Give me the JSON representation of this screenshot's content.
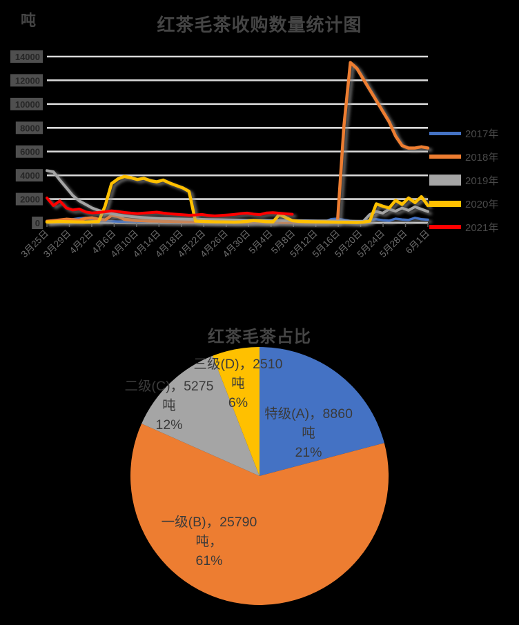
{
  "colors": {
    "background": "#000000",
    "title_text": "#454545",
    "axis_text": "#6b6b6b",
    "gridline": "#D9D9D9",
    "series_blue": "#4472C4",
    "series_orange": "#ED7D31",
    "series_gray": "#A5A5A5",
    "series_yellow": "#FFC000",
    "series_red": "#FF0000"
  },
  "chart_data": [
    {
      "type": "line",
      "title": "红茶毛茶收购数量统计图",
      "unit": "吨",
      "grid": true,
      "legend_position": "right",
      "ylim": [
        0,
        14000
      ],
      "y_ticks": [
        0,
        2000,
        4000,
        6000,
        8000,
        10000,
        12000,
        14000
      ],
      "x_tick_labels": [
        "3月25日",
        "3月29日",
        "4月2日",
        "4月6日",
        "4月10日",
        "4月14日",
        "4月18日",
        "4月22日",
        "4月26日",
        "4月30日",
        "5月4日",
        "5月8日",
        "5月12日",
        "5月16日",
        "5月20日",
        "5月24日",
        "5月28日",
        "6月1日"
      ],
      "series": [
        {
          "name": "2017年",
          "color": "#4472C4",
          "values": [
            90,
            130,
            160,
            110,
            300,
            380,
            420,
            300,
            200,
            150,
            130,
            110,
            100,
            95,
            90,
            110,
            130,
            120,
            100,
            95,
            90,
            100,
            110,
            120,
            100,
            90,
            85,
            95,
            105,
            115,
            100,
            90,
            85,
            80,
            90,
            100,
            110,
            90,
            80,
            70,
            80,
            90,
            85,
            80,
            300,
            350,
            250,
            150,
            90,
            80,
            250,
            300,
            220,
            180,
            350,
            280,
            240,
            420,
            300,
            260
          ]
        },
        {
          "name": "2018年",
          "color": "#ED7D31",
          "values": [
            130,
            180,
            240,
            300,
            260,
            220,
            380,
            420,
            300,
            240,
            620,
            540,
            300,
            250,
            200,
            180,
            160,
            150,
            140,
            130,
            120,
            110,
            100,
            95,
            90,
            85,
            80,
            75,
            70,
            65,
            60,
            55,
            50,
            50,
            50,
            50,
            50,
            45,
            40,
            40,
            40,
            40,
            45,
            50,
            55,
            60,
            8200,
            13500,
            13000,
            12100,
            11200,
            10300,
            9400,
            8500,
            7300,
            6500,
            6300,
            6300,
            6400,
            6300
          ]
        },
        {
          "name": "2019年",
          "color": "#A5A5A5",
          "values": [
            4400,
            4300,
            3600,
            2950,
            2300,
            1850,
            1550,
            1250,
            1050,
            900,
            780,
            680,
            600,
            530,
            480,
            440,
            410,
            390,
            370,
            350,
            330,
            320,
            310,
            300,
            290,
            280,
            270,
            260,
            250,
            240,
            230,
            220,
            215,
            210,
            205,
            200,
            195,
            190,
            185,
            180,
            175,
            170,
            165,
            160,
            155,
            150,
            145,
            140,
            135,
            130,
            700,
            950,
            820,
            1150,
            980,
            1250,
            1050,
            1350,
            1150,
            950
          ]
        },
        {
          "name": "2020年",
          "color": "#FFC000",
          "values": [
            70,
            90,
            110,
            95,
            85,
            75,
            65,
            85,
            105,
            1400,
            3300,
            3700,
            3900,
            3800,
            3650,
            3750,
            3550,
            3450,
            3600,
            3350,
            3150,
            2950,
            2650,
            150,
            120,
            100,
            90,
            80,
            70,
            60,
            80,
            120,
            200,
            150,
            100,
            90,
            700,
            450,
            180,
            120,
            100,
            90,
            80,
            70,
            60,
            50,
            40,
            35,
            30,
            60,
            150,
            1600,
            1400,
            1250,
            1900,
            1550,
            2100,
            1700,
            2200,
            1450
          ]
        },
        {
          "name": "2021年",
          "color": "#FF0000",
          "values": [
            2100,
            1450,
            1850,
            1250,
            1080,
            1160,
            920,
            830,
            870,
            930,
            1010,
            950,
            870,
            820,
            780,
            820,
            860,
            900,
            820,
            760,
            720,
            680,
            640,
            660,
            700,
            620,
            580,
            620,
            660,
            700,
            780,
            820,
            730,
            690,
            830,
            860,
            810,
            760,
            720,
            null,
            null,
            null,
            null,
            null,
            null,
            null,
            null,
            null,
            null,
            null,
            null,
            null,
            null,
            null,
            null,
            null,
            null,
            null,
            null,
            null
          ]
        }
      ]
    },
    {
      "type": "pie",
      "title": "红茶毛茶占比",
      "slices": [
        {
          "name": "特级(A)",
          "value": 8860,
          "pct": "21%",
          "unit": "吨",
          "color": "#4472C4",
          "label_lines": [
            "特级(A)，8860",
            "吨",
            "21%"
          ]
        },
        {
          "name": "一级(B)",
          "value": 25790,
          "pct": "61%",
          "unit": "吨",
          "color": "#ED7D31",
          "label_lines": [
            "一级(B)，25790",
            "吨，",
            "61%"
          ]
        },
        {
          "name": "二级(C)",
          "value": 5275,
          "pct": "12%",
          "unit": "吨",
          "color": "#A5A5A5",
          "label_lines": [
            "二级(C)，5275",
            "吨",
            "12%"
          ]
        },
        {
          "name": "三级(D)",
          "value": 2510,
          "pct": "6%",
          "unit": "吨",
          "color": "#FFC000",
          "label_lines": [
            "三级(D)，2510",
            "吨",
            "6%"
          ]
        }
      ]
    }
  ]
}
